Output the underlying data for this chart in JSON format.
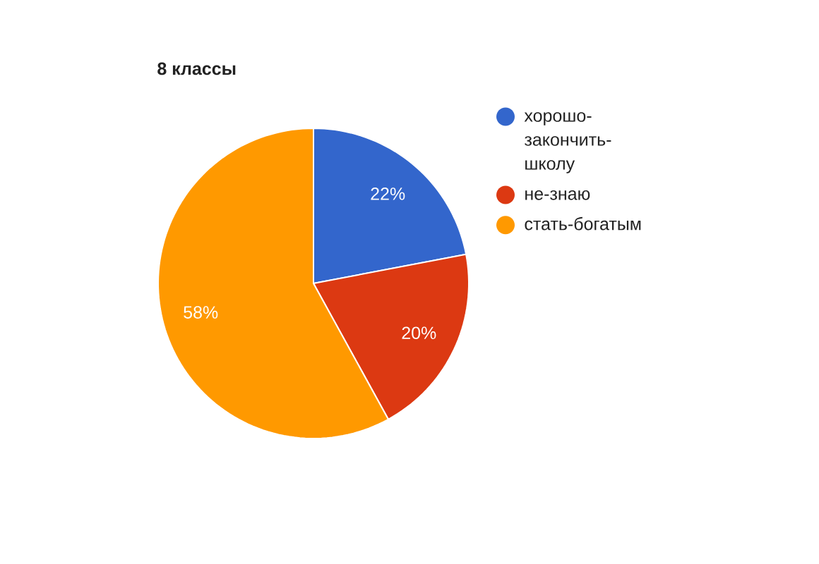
{
  "chart_data": {
    "type": "pie",
    "title": "8 классы",
    "categories": [
      "хорошо-закончить-школу",
      "не-знаю",
      "стать-богатым"
    ],
    "values": [
      22,
      20,
      58
    ],
    "colors": [
      "#3366cc",
      "#dc3912",
      "#ff9900"
    ],
    "value_labels": [
      "22%",
      "20%",
      "58%"
    ],
    "legend": "right"
  }
}
